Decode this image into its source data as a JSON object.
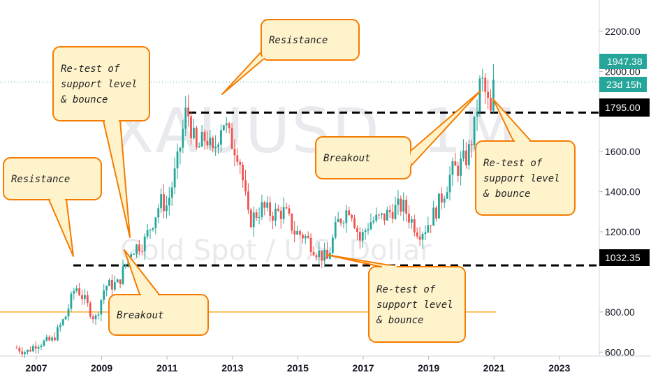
{
  "watermark": {
    "symbol": "XAUUSD, 1M",
    "description": "Gold Spot / U.S. Dollar"
  },
  "colors": {
    "up": "#26a69a",
    "down": "#ef5350",
    "note_fill": "#fff3cc",
    "note_stroke": "#f57c00",
    "price_tag": "#26a69a",
    "level_tag": "#000000",
    "orange_line": "#ff9800"
  },
  "price_tags": {
    "current": "1947.38",
    "countdown": "23d 15h",
    "level_high": "1795.00",
    "level_low": "1032.35"
  },
  "annotations": [
    {
      "id": "resistance-1",
      "lines": [
        "Resistance"
      ]
    },
    {
      "id": "retest-1",
      "lines": [
        "Re-test of",
        "support level",
        "& bounce"
      ]
    },
    {
      "id": "breakout-1",
      "lines": [
        "Breakout"
      ]
    },
    {
      "id": "resistance-2",
      "lines": [
        "Resistance"
      ]
    },
    {
      "id": "breakout-2",
      "lines": [
        "Breakout"
      ]
    },
    {
      "id": "retest-2",
      "lines": [
        "Re-test of",
        "support level",
        "& bounce"
      ]
    },
    {
      "id": "retest-3",
      "lines": [
        "Re-test of",
        "support level",
        "& bounce"
      ]
    }
  ],
  "chart_data": {
    "type": "candlestick",
    "interval": "1M",
    "y_axis": {
      "position": "right",
      "ticks": [
        "2200.00",
        "2000.00",
        "1600.00",
        "1400.00",
        "1200.00",
        "800.00",
        "600.00"
      ],
      "ylim": [
        580,
        2250
      ]
    },
    "x_axis": {
      "ticks": [
        "2007",
        "2009",
        "2011",
        "2013",
        "2015",
        "2017",
        "2019",
        "2021",
        "2023"
      ],
      "xlim": [
        2006.33,
        2025.0
      ]
    },
    "horizontal_levels": [
      {
        "value": 1795.0,
        "style": "dashed"
      },
      {
        "value": 1032.35,
        "style": "dashed"
      },
      {
        "value": 1947.38,
        "style": "dotted"
      },
      {
        "value": 800,
        "style": "solid"
      }
    ],
    "price_path": [
      [
        2006.4,
        620
      ],
      [
        2006.7,
        600
      ],
      [
        2007.0,
        640
      ],
      [
        2007.5,
        660
      ],
      [
        2007.9,
        780
      ],
      [
        2008.2,
        930
      ],
      [
        2008.4,
        880
      ],
      [
        2008.8,
        760
      ],
      [
        2009.1,
        930
      ],
      [
        2009.5,
        940
      ],
      [
        2009.9,
        1110
      ],
      [
        2010.3,
        1150
      ],
      [
        2010.5,
        1230
      ],
      [
        2010.8,
        1350
      ],
      [
        2011.0,
        1330
      ],
      [
        2011.3,
        1530
      ],
      [
        2011.6,
        1820
      ],
      [
        2011.9,
        1600
      ],
      [
        2012.2,
        1680
      ],
      [
        2012.4,
        1580
      ],
      [
        2012.7,
        1770
      ],
      [
        2012.9,
        1670
      ],
      [
        2013.2,
        1590
      ],
      [
        2013.5,
        1250
      ],
      [
        2013.9,
        1320
      ],
      [
        2014.2,
        1290
      ],
      [
        2014.6,
        1300
      ],
      [
        2014.9,
        1200
      ],
      [
        2015.2,
        1180
      ],
      [
        2015.6,
        1100
      ],
      [
        2015.9,
        1060
      ],
      [
        2016.2,
        1240
      ],
      [
        2016.6,
        1330
      ],
      [
        2016.9,
        1160
      ],
      [
        2017.2,
        1250
      ],
      [
        2017.6,
        1270
      ],
      [
        2017.9,
        1310
      ],
      [
        2018.2,
        1330
      ],
      [
        2018.5,
        1250
      ],
      [
        2018.7,
        1200
      ],
      [
        2018.9,
        1220
      ],
      [
        2019.2,
        1300
      ],
      [
        2019.5,
        1410
      ],
      [
        2019.7,
        1500
      ],
      [
        2019.9,
        1520
      ],
      [
        2020.2,
        1580
      ],
      [
        2020.4,
        1720
      ],
      [
        2020.6,
        1970
      ],
      [
        2020.75,
        1880
      ],
      [
        2020.9,
        1780
      ],
      [
        2021.0,
        1947.38
      ]
    ]
  }
}
